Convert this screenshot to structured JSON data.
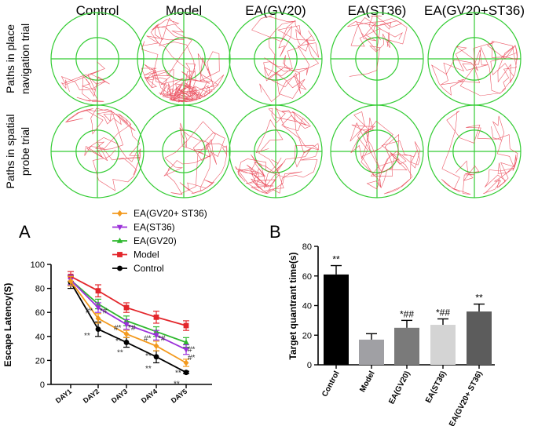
{
  "panel_top": {
    "group_titles": [
      "Control",
      "Model",
      "EA(GV20)",
      "EA(ST36)",
      "EA(GV20+ST36)"
    ],
    "row_labels": [
      {
        "line1": "Paths in place",
        "line2": "navigation trial"
      },
      {
        "line1": "Paths in spatial",
        "line2": "probe trial"
      }
    ]
  },
  "colors": {
    "control": "#000000",
    "model": "#e3262b",
    "gv20": "#2eb82e",
    "st36": "#9b30d9",
    "gv20_st36": "#f39a1e",
    "pool": "#33cc33",
    "path": "#e83a4a"
  },
  "chart_data": [
    {
      "type": "line",
      "panel_label": "A",
      "title": "",
      "xlabel": "",
      "ylabel": "Escape Latency(S)",
      "categories": [
        "DAY1",
        "DAY2",
        "DAY3",
        "DAY4",
        "DAY5"
      ],
      "ylim": [
        0,
        100
      ],
      "yticks": [
        "0",
        "20",
        "40",
        "60",
        "80",
        "100"
      ],
      "legend_position": "top-left",
      "series": [
        {
          "key": "gv20_st36",
          "name": "EA(GV20+ ST36)",
          "marker": "diamond",
          "values": [
            86,
            55,
            42,
            32,
            18
          ],
          "errors": [
            4,
            4,
            3,
            4,
            3
          ]
        },
        {
          "key": "st36",
          "name": "EA(ST36)",
          "marker": "triangle-down",
          "values": [
            87,
            64,
            50,
            41,
            29
          ],
          "errors": [
            4,
            4,
            4,
            4,
            4
          ]
        },
        {
          "key": "gv20",
          "name": "EA(GV20)",
          "marker": "triangle-up",
          "values": [
            87,
            67,
            53,
            44,
            35
          ],
          "errors": [
            4,
            4,
            4,
            4,
            4
          ]
        },
        {
          "key": "model",
          "name": "Model",
          "marker": "square",
          "values": [
            90,
            78,
            64,
            56,
            49
          ],
          "errors": [
            4,
            5,
            4,
            5,
            4
          ]
        },
        {
          "key": "control",
          "name": "Control",
          "marker": "circle",
          "values": [
            85,
            46,
            35,
            23,
            10
          ],
          "errors": [
            5,
            6,
            4,
            5,
            1
          ]
        }
      ],
      "annotations": [
        {
          "text": "#*",
          "at": "DAY2",
          "value": 67
        },
        {
          "text": "*#",
          "at": "DAY2",
          "value": 67
        },
        {
          "text": "**",
          "at": "DAY2",
          "value": 49
        },
        {
          "text": "#*",
          "at": "DAY3",
          "value": 53
        },
        {
          "text": "*#",
          "at": "DAY3",
          "value": 53
        },
        {
          "text": "**",
          "at": "DAY3",
          "value": 43
        },
        {
          "text": "**",
          "at": "DAY3",
          "value": 35
        },
        {
          "text": "#*",
          "at": "DAY4",
          "value": 44
        },
        {
          "text": "*#",
          "at": "DAY4",
          "value": 44
        },
        {
          "text": "**",
          "at": "DAY4",
          "value": 32
        },
        {
          "text": "**",
          "at": "DAY4",
          "value": 23
        },
        {
          "text": "#*",
          "at": "DAY5",
          "value": 35
        },
        {
          "text": "#*",
          "at": "DAY5",
          "value": 28
        },
        {
          "text": "**",
          "at": "DAY5",
          "value": 18
        },
        {
          "text": "**",
          "at": "DAY5",
          "value": 10
        }
      ]
    },
    {
      "type": "bar",
      "panel_label": "B",
      "title": "",
      "xlabel": "",
      "ylabel": "Target quantrant time(s)",
      "categories": [
        "Control",
        "Model",
        "EA(GV20)",
        "EA(ST36)",
        "EA(GV20+ ST36)"
      ],
      "values": [
        61,
        17,
        25,
        27,
        36
      ],
      "errors": [
        6,
        4,
        5,
        4,
        5
      ],
      "sig": [
        "**",
        "",
        "*##",
        "*##",
        "**"
      ],
      "bar_colors": [
        "#000000",
        "#a0a0a4",
        "#7a7a7a",
        "#d4d4d4",
        "#5c5c5c"
      ],
      "ylim": [
        0,
        80
      ],
      "yticks": [
        "0",
        "20",
        "40",
        "60",
        "80"
      ]
    }
  ]
}
